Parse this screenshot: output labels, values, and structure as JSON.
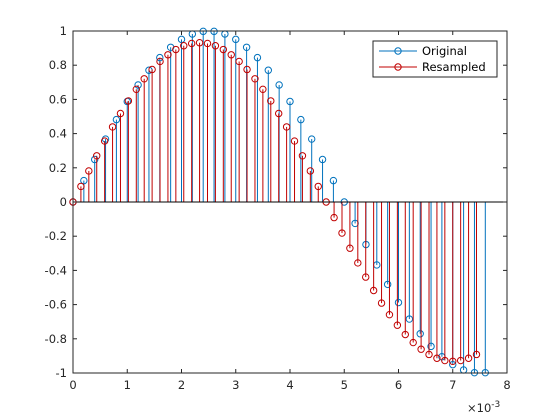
{
  "chart_data": {
    "type": "stem",
    "title": "",
    "xlabel": "",
    "ylabel": "",
    "x_exponent_label": "×10",
    "x_exponent_power": "-3",
    "xlim": [
      0,
      8
    ],
    "ylim": [
      -1,
      1
    ],
    "x_tick_values": [
      0,
      1,
      2,
      3,
      4,
      5,
      6,
      7,
      8
    ],
    "x_tick_labels": [
      "0",
      "1",
      "2",
      "3",
      "4",
      "5",
      "6",
      "7",
      "8"
    ],
    "y_tick_values": [
      -1,
      -0.8,
      -0.6,
      -0.4,
      -0.2,
      0,
      0.2,
      0.4,
      0.6,
      0.8,
      1
    ],
    "y_tick_labels": [
      "-1",
      "-0.8",
      "-0.6",
      "-0.4",
      "-0.2",
      "0",
      "0.2",
      "0.4",
      "0.6",
      "0.8",
      "1"
    ],
    "grid": false,
    "legend_location": "top-right",
    "series": [
      {
        "name": "Original",
        "color": "#0072BD",
        "x": [
          0,
          0.2,
          0.4,
          0.6,
          0.8,
          1.0,
          1.2,
          1.4,
          1.6,
          1.8,
          2.0,
          2.2,
          2.4,
          2.6,
          2.8,
          3.0,
          3.2,
          3.4,
          3.6,
          3.8,
          4.0,
          4.2,
          4.4,
          4.6,
          4.8,
          5.0,
          5.2,
          5.4,
          5.6,
          5.8,
          6.0,
          6.2,
          6.4,
          6.6,
          6.8,
          7.0,
          7.2,
          7.4,
          7.6
        ],
        "y": [
          0,
          0.1253,
          0.2487,
          0.3681,
          0.4818,
          0.5878,
          0.6845,
          0.7705,
          0.8443,
          0.9048,
          0.9511,
          0.9823,
          0.998,
          0.998,
          0.9823,
          0.9511,
          0.9048,
          0.8443,
          0.7705,
          0.6845,
          0.5878,
          0.4818,
          0.3681,
          0.2487,
          0.1253,
          0,
          -0.1253,
          -0.2487,
          -0.3681,
          -0.4818,
          -0.5878,
          -0.6845,
          -0.7705,
          -0.8443,
          -0.9048,
          -0.9511,
          -0.9823,
          -0.998,
          -0.998
        ]
      },
      {
        "name": "Resampled",
        "color": "#C00000",
        "x": [
          0,
          0.1458,
          0.2917,
          0.4375,
          0.5833,
          0.7292,
          0.875,
          1.0208,
          1.1667,
          1.3125,
          1.4583,
          1.6042,
          1.75,
          1.8958,
          2.0417,
          2.1875,
          2.3333,
          2.4792,
          2.625,
          2.7708,
          2.9167,
          3.0625,
          3.2083,
          3.3542,
          3.5,
          3.6458,
          3.7917,
          3.9375,
          4.0833,
          4.2292,
          4.375,
          4.5208,
          4.6667,
          4.8125,
          4.9583,
          5.1042,
          5.25,
          5.3958,
          5.5417,
          5.6875,
          5.8333,
          5.9792,
          6.125,
          6.2708,
          6.4167,
          6.5625,
          6.7083,
          6.8542,
          7.0,
          7.1458,
          7.2917,
          7.4375
        ],
        "y": [
          0,
          0.0912,
          0.1816,
          0.2703,
          0.3564,
          0.4391,
          0.5176,
          0.5912,
          0.659,
          0.7205,
          0.775,
          0.822,
          0.861,
          0.8917,
          0.9137,
          0.9271,
          0.9315,
          0.9271,
          0.9137,
          0.8917,
          0.861,
          0.822,
          0.775,
          0.7205,
          0.659,
          0.5912,
          0.5176,
          0.4391,
          0.3564,
          0.2703,
          0.1816,
          0.0912,
          0,
          -0.0912,
          -0.1816,
          -0.2703,
          -0.3564,
          -0.4391,
          -0.5176,
          -0.5912,
          -0.659,
          -0.7205,
          -0.775,
          -0.822,
          -0.861,
          -0.8917,
          -0.9137,
          -0.9271,
          -0.9315,
          -0.9271,
          -0.9137,
          -0.8917
        ]
      }
    ]
  }
}
